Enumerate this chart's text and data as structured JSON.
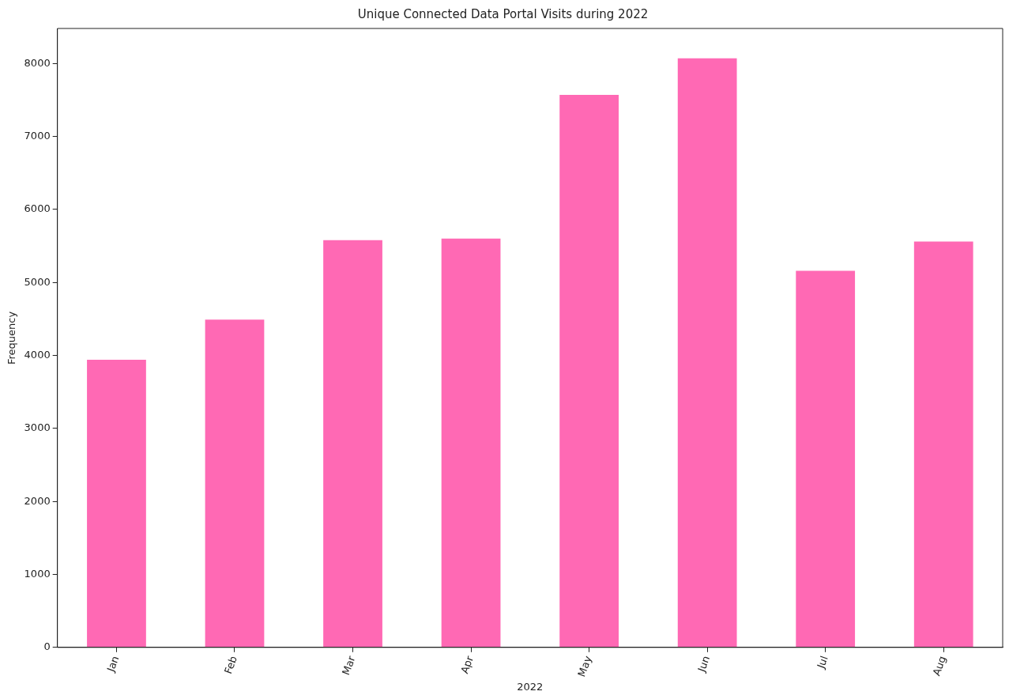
{
  "chart_data": {
    "type": "bar",
    "title": "Unique Connected Data Portal Visits during 2022",
    "xlabel": "2022",
    "ylabel": "Frequency",
    "categories": [
      "Jan",
      "Feb",
      "Mar",
      "Apr",
      "May",
      "Jun",
      "Jul",
      "Aug"
    ],
    "values": [
      3940,
      4490,
      5580,
      5600,
      7570,
      8070,
      5160,
      5560
    ],
    "color": "#ff69b4",
    "ylim": [
      0,
      8480
    ],
    "yticks": [
      0,
      1000,
      2000,
      3000,
      4000,
      5000,
      6000,
      7000,
      8000
    ],
    "grid": false,
    "legend": false
  }
}
